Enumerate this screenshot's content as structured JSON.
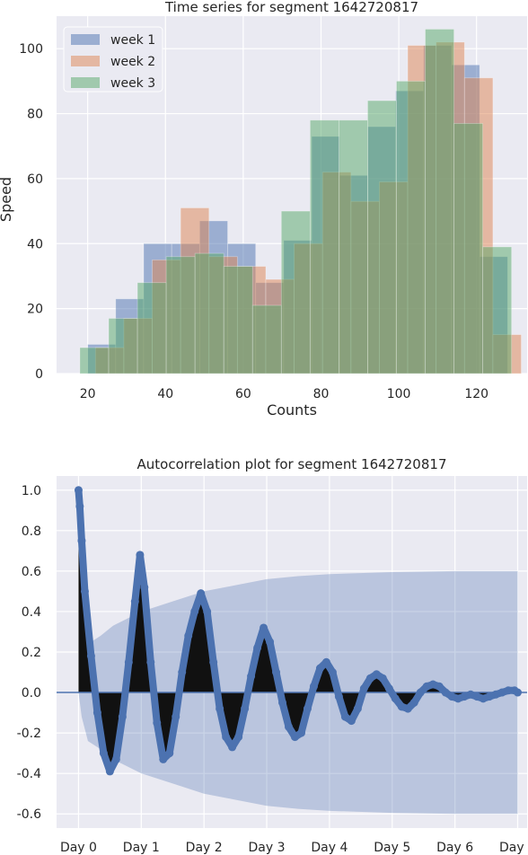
{
  "chart_data": [
    {
      "type": "histogram",
      "title": "Time series for segment 1642720817",
      "xlabel": "Counts",
      "ylabel": "Speed",
      "xlim": [
        12,
        133
      ],
      "ylim": [
        0,
        110
      ],
      "xticks": [
        "20",
        "40",
        "60",
        "80",
        "100",
        "120"
      ],
      "yticks": [
        "0",
        "20",
        "40",
        "60",
        "80",
        "100"
      ],
      "legend_position": "top-left",
      "grid": true,
      "series": [
        {
          "name": "week 1",
          "color": "#4c72b0",
          "bins": [
            [
              20,
              27.2,
              9
            ],
            [
              27.2,
              34.4,
              23
            ],
            [
              34.4,
              41.6,
              40
            ],
            [
              41.6,
              48.8,
              40
            ],
            [
              48.8,
              56,
              47
            ],
            [
              56,
              63.2,
              40
            ],
            [
              63.2,
              70.4,
              28
            ],
            [
              70.4,
              77.6,
              41
            ],
            [
              77.6,
              84.8,
              73
            ],
            [
              84.8,
              92,
              61
            ],
            [
              92,
              99.2,
              76
            ],
            [
              99.2,
              106.4,
              87
            ],
            [
              106.4,
              113.6,
              101
            ],
            [
              113.6,
              120.8,
              95
            ],
            [
              120.8,
              128,
              36
            ]
          ]
        },
        {
          "name": "week 2",
          "color": "#dd8452",
          "bins": [
            [
              22,
              29.3,
              8
            ],
            [
              29.3,
              36.6,
              17
            ],
            [
              36.6,
              43.9,
              35
            ],
            [
              43.9,
              51.2,
              51
            ],
            [
              51.2,
              58.5,
              36
            ],
            [
              58.5,
              65.8,
              33
            ],
            [
              65.8,
              73.1,
              29
            ],
            [
              73.1,
              80.4,
              40
            ],
            [
              80.4,
              87.7,
              62
            ],
            [
              87.7,
              95,
              53
            ],
            [
              95,
              102.3,
              59
            ],
            [
              102.3,
              109.6,
              101
            ],
            [
              109.6,
              116.9,
              102
            ],
            [
              116.9,
              124.2,
              91
            ],
            [
              124.2,
              131.5,
              12
            ]
          ]
        },
        {
          "name": "week 3",
          "color": "#55a868",
          "bins": [
            [
              18,
              25.4,
              8
            ],
            [
              25.4,
              32.8,
              17
            ],
            [
              32.8,
              40.2,
              28
            ],
            [
              40.2,
              47.6,
              36
            ],
            [
              47.6,
              55,
              37
            ],
            [
              55,
              62.4,
              33
            ],
            [
              62.4,
              69.8,
              21
            ],
            [
              69.8,
              77.2,
              50
            ],
            [
              77.2,
              84.6,
              78
            ],
            [
              84.6,
              92,
              78
            ],
            [
              92,
              99.4,
              84
            ],
            [
              99.4,
              106.8,
              90
            ],
            [
              106.8,
              114.2,
              106
            ],
            [
              114.2,
              121.6,
              77
            ],
            [
              121.6,
              129,
              39
            ]
          ]
        }
      ]
    },
    {
      "type": "line",
      "title": "Autocorrelation plot for segment 1642720817",
      "xlabel": "",
      "ylabel": "",
      "xlim": [
        -0.35,
        7.15
      ],
      "ylim": [
        -0.67,
        1.07
      ],
      "xticks": [
        "Day 0",
        "Day 1",
        "Day 2",
        "Day 3",
        "Day 4",
        "Day 5",
        "Day 6",
        "Day 7"
      ],
      "yticks": [
        "-0.6",
        "-0.4",
        "-0.2",
        "0.0",
        "0.2",
        "0.4",
        "0.6",
        "0.8",
        "1.0"
      ],
      "grid": true,
      "confidence_band": [
        [
          0,
          0
        ],
        [
          0.05,
          0.12
        ],
        [
          0.15,
          0.24
        ],
        [
          0.35,
          0.28
        ],
        [
          0.55,
          0.33
        ],
        [
          1,
          0.4
        ],
        [
          1.5,
          0.45
        ],
        [
          2,
          0.5
        ],
        [
          2.5,
          0.53
        ],
        [
          3,
          0.56
        ],
        [
          3.5,
          0.575
        ],
        [
          4,
          0.585
        ],
        [
          5,
          0.595
        ],
        [
          6,
          0.6
        ],
        [
          7,
          0.6
        ]
      ],
      "series": [
        {
          "color": "#4c72b0",
          "points": [
            [
              0,
              1.0
            ],
            [
              0.02,
              0.92
            ],
            [
              0.05,
              0.75
            ],
            [
              0.1,
              0.5
            ],
            [
              0.2,
              0.18
            ],
            [
              0.3,
              -0.1
            ],
            [
              0.4,
              -0.3
            ],
            [
              0.5,
              -0.39
            ],
            [
              0.6,
              -0.33
            ],
            [
              0.7,
              -0.12
            ],
            [
              0.8,
              0.15
            ],
            [
              0.9,
              0.45
            ],
            [
              0.98,
              0.68
            ],
            [
              1.05,
              0.52
            ],
            [
              1.15,
              0.15
            ],
            [
              1.25,
              -0.15
            ],
            [
              1.35,
              -0.33
            ],
            [
              1.45,
              -0.3
            ],
            [
              1.55,
              -0.12
            ],
            [
              1.65,
              0.1
            ],
            [
              1.75,
              0.28
            ],
            [
              1.85,
              0.4
            ],
            [
              1.95,
              0.49
            ],
            [
              2.05,
              0.4
            ],
            [
              2.15,
              0.15
            ],
            [
              2.25,
              -0.08
            ],
            [
              2.35,
              -0.22
            ],
            [
              2.45,
              -0.27
            ],
            [
              2.55,
              -0.22
            ],
            [
              2.65,
              -0.08
            ],
            [
              2.75,
              0.08
            ],
            [
              2.85,
              0.22
            ],
            [
              2.95,
              0.32
            ],
            [
              3.05,
              0.25
            ],
            [
              3.15,
              0.1
            ],
            [
              3.25,
              -0.05
            ],
            [
              3.35,
              -0.17
            ],
            [
              3.45,
              -0.22
            ],
            [
              3.55,
              -0.2
            ],
            [
              3.65,
              -0.08
            ],
            [
              3.75,
              0.03
            ],
            [
              3.85,
              0.12
            ],
            [
              3.95,
              0.15
            ],
            [
              4.05,
              0.1
            ],
            [
              4.15,
              -0.02
            ],
            [
              4.25,
              -0.12
            ],
            [
              4.35,
              -0.14
            ],
            [
              4.45,
              -0.08
            ],
            [
              4.55,
              0.02
            ],
            [
              4.65,
              0.07
            ],
            [
              4.75,
              0.09
            ],
            [
              4.85,
              0.07
            ],
            [
              4.95,
              0.02
            ],
            [
              5.05,
              -0.03
            ],
            [
              5.15,
              -0.07
            ],
            [
              5.25,
              -0.08
            ],
            [
              5.35,
              -0.05
            ],
            [
              5.45,
              0.0
            ],
            [
              5.55,
              0.03
            ],
            [
              5.65,
              0.04
            ],
            [
              5.75,
              0.03
            ],
            [
              5.85,
              0.0
            ],
            [
              5.95,
              -0.02
            ],
            [
              6.05,
              -0.03
            ],
            [
              6.15,
              -0.02
            ],
            [
              6.25,
              -0.01
            ],
            [
              6.35,
              -0.02
            ],
            [
              6.45,
              -0.03
            ],
            [
              6.55,
              -0.02
            ],
            [
              6.65,
              -0.01
            ],
            [
              6.75,
              0.0
            ],
            [
              6.85,
              0.01
            ],
            [
              6.95,
              0.01
            ],
            [
              7.0,
              0.0
            ]
          ]
        }
      ]
    }
  ]
}
